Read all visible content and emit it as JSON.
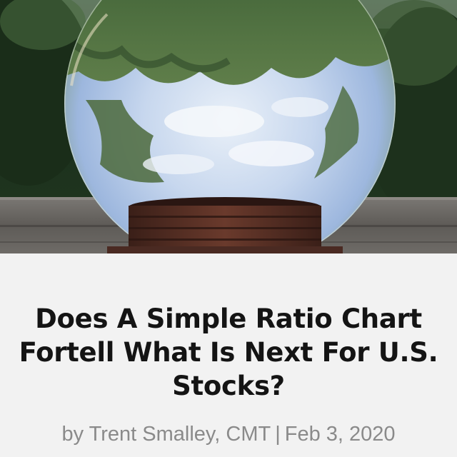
{
  "hero": {
    "image": "crystal-ball-photo",
    "palette": {
      "foliage_dark": "#1b2f1c",
      "foliage_mid": "#2f4a2a",
      "sky_light": "#dde8f5",
      "sky_blue": "#9fb8df",
      "wood": "#6d6a66",
      "stand": "#4a2a22"
    }
  },
  "post": {
    "title_lines": [
      "Does A Simple Ratio Chart",
      "Fortell What Is Next For U.S.",
      "Stocks?"
    ],
    "author_prefix": "by Trent Smalley, CMT",
    "separator": "|",
    "date": "Feb 3, 2020"
  }
}
